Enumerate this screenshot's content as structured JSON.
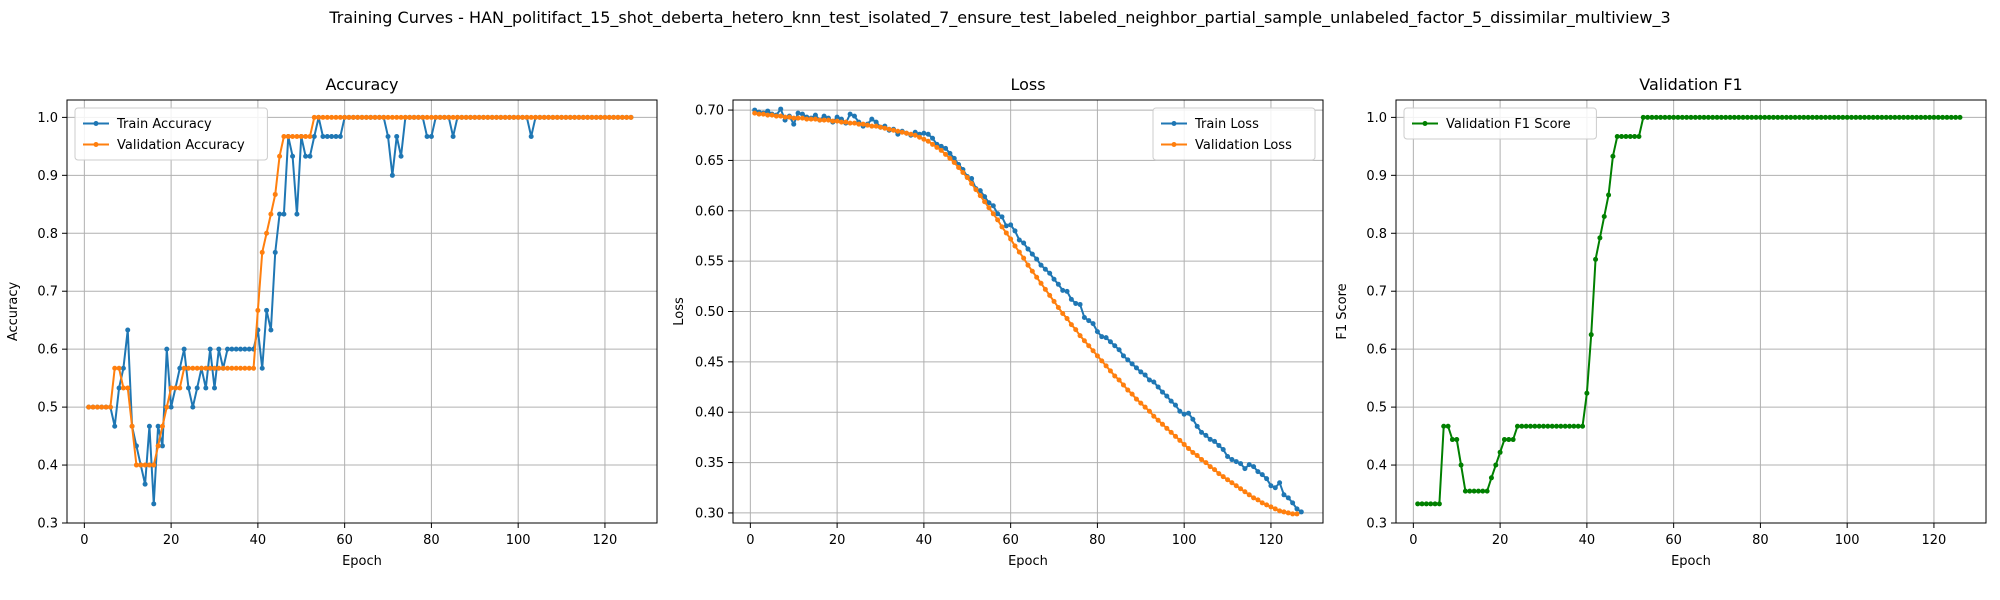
{
  "figure": {
    "suptitle": "Training Curves - HAN_politifact_15_shot_deberta_hetero_knn_test_isolated_7_ensure_test_labeled_neighbor_partial_sample_unlabeled_factor_5_dissimilar_multiview_3"
  },
  "colors": {
    "train": "#1f77b4",
    "validation": "#ff7f0e",
    "f1": "#008000",
    "grid": "#b0b0b0"
  },
  "chart_data": [
    {
      "type": "line",
      "title": "Accuracy",
      "xlabel": "Epoch",
      "ylabel": "Accuracy",
      "xlim": [
        -4,
        132
      ],
      "ylim": [
        0.3,
        1.03
      ],
      "xticks": [
        0,
        20,
        40,
        60,
        80,
        100,
        120
      ],
      "yticks": [
        0.3,
        0.4,
        0.5,
        0.6,
        0.7,
        0.8,
        0.9,
        1.0
      ],
      "grid": true,
      "legend_position": "upper-left",
      "x_start": 1,
      "series": [
        {
          "name": "Train Accuracy",
          "color": "#1f77b4",
          "values": [
            0.5,
            0.5,
            0.5,
            0.5,
            0.5,
            0.5,
            0.467,
            0.533,
            0.567,
            0.633,
            0.467,
            0.433,
            0.4,
            0.367,
            0.467,
            0.333,
            0.467,
            0.433,
            0.6,
            0.5,
            0.533,
            0.567,
            0.6,
            0.533,
            0.5,
            0.533,
            0.567,
            0.533,
            0.6,
            0.533,
            0.6,
            0.567,
            0.6,
            0.6,
            0.6,
            0.6,
            0.6,
            0.6,
            0.6,
            0.633,
            0.567,
            0.667,
            0.633,
            0.767,
            0.833,
            0.833,
            0.967,
            0.933,
            0.833,
            0.967,
            0.933,
            0.933,
            0.967,
            1.0,
            0.967,
            0.967,
            0.967,
            0.967,
            0.967,
            1.0,
            1.0,
            1.0,
            1.0,
            1.0,
            1.0,
            1.0,
            1.0,
            1.0,
            1.0,
            0.967,
            0.9,
            0.967,
            0.933,
            1.0,
            1.0,
            1.0,
            1.0,
            1.0,
            0.967,
            0.967,
            1.0,
            1.0,
            1.0,
            1.0,
            0.967,
            1.0,
            1.0,
            1.0,
            1.0,
            1.0,
            1.0,
            1.0,
            1.0,
            1.0,
            1.0,
            1.0,
            1.0,
            1.0,
            1.0,
            1.0,
            1.0,
            1.0,
            0.967,
            1.0,
            1.0,
            1.0,
            1.0,
            1.0,
            1.0,
            1.0,
            1.0,
            1.0,
            1.0,
            1.0,
            1.0,
            1.0,
            1.0,
            1.0,
            1.0,
            1.0,
            1.0,
            1.0,
            1.0,
            1.0,
            1.0,
            1.0
          ]
        },
        {
          "name": "Validation Accuracy",
          "color": "#ff7f0e",
          "values": [
            0.5,
            0.5,
            0.5,
            0.5,
            0.5,
            0.5,
            0.567,
            0.567,
            0.533,
            0.533,
            0.467,
            0.4,
            0.4,
            0.4,
            0.4,
            0.4,
            0.433,
            0.467,
            0.5,
            0.533,
            0.533,
            0.533,
            0.567,
            0.567,
            0.567,
            0.567,
            0.567,
            0.567,
            0.567,
            0.567,
            0.567,
            0.567,
            0.567,
            0.567,
            0.567,
            0.567,
            0.567,
            0.567,
            0.567,
            0.667,
            0.767,
            0.8,
            0.833,
            0.867,
            0.933,
            0.967,
            0.967,
            0.967,
            0.967,
            0.967,
            0.967,
            0.967,
            1.0,
            1.0,
            1.0,
            1.0,
            1.0,
            1.0,
            1.0,
            1.0,
            1.0,
            1.0,
            1.0,
            1.0,
            1.0,
            1.0,
            1.0,
            1.0,
            1.0,
            1.0,
            1.0,
            1.0,
            1.0,
            1.0,
            1.0,
            1.0,
            1.0,
            1.0,
            1.0,
            1.0,
            1.0,
            1.0,
            1.0,
            1.0,
            1.0,
            1.0,
            1.0,
            1.0,
            1.0,
            1.0,
            1.0,
            1.0,
            1.0,
            1.0,
            1.0,
            1.0,
            1.0,
            1.0,
            1.0,
            1.0,
            1.0,
            1.0,
            1.0,
            1.0,
            1.0,
            1.0,
            1.0,
            1.0,
            1.0,
            1.0,
            1.0,
            1.0,
            1.0,
            1.0,
            1.0,
            1.0,
            1.0,
            1.0,
            1.0,
            1.0,
            1.0,
            1.0,
            1.0,
            1.0,
            1.0,
            1.0
          ]
        }
      ]
    },
    {
      "type": "line",
      "title": "Loss",
      "xlabel": "Epoch",
      "ylabel": "Loss",
      "xlim": [
        -4,
        132
      ],
      "ylim": [
        0.29,
        0.71
      ],
      "xticks": [
        0,
        20,
        40,
        60,
        80,
        100,
        120
      ],
      "yticks": [
        0.3,
        0.35,
        0.4,
        0.45,
        0.5,
        0.55,
        0.6,
        0.65,
        0.7
      ],
      "grid": true,
      "legend_position": "upper-right",
      "x_start": 1,
      "series": [
        {
          "name": "Train Loss",
          "color": "#1f77b4",
          "values": [
            0.7,
            0.698,
            0.697,
            0.699,
            0.696,
            0.695,
            0.701,
            0.69,
            0.694,
            0.686,
            0.697,
            0.696,
            0.693,
            0.692,
            0.695,
            0.69,
            0.694,
            0.692,
            0.688,
            0.693,
            0.691,
            0.687,
            0.696,
            0.694,
            0.688,
            0.684,
            0.686,
            0.691,
            0.688,
            0.683,
            0.684,
            0.68,
            0.681,
            0.676,
            0.679,
            0.677,
            0.675,
            0.678,
            0.676,
            0.677,
            0.676,
            0.672,
            0.666,
            0.664,
            0.662,
            0.657,
            0.652,
            0.646,
            0.641,
            0.634,
            0.632,
            0.622,
            0.62,
            0.614,
            0.608,
            0.605,
            0.597,
            0.594,
            0.585,
            0.586,
            0.58,
            0.571,
            0.568,
            0.562,
            0.557,
            0.552,
            0.546,
            0.542,
            0.538,
            0.532,
            0.527,
            0.521,
            0.52,
            0.512,
            0.508,
            0.507,
            0.494,
            0.491,
            0.488,
            0.48,
            0.475,
            0.474,
            0.47,
            0.466,
            0.462,
            0.456,
            0.452,
            0.448,
            0.444,
            0.44,
            0.437,
            0.432,
            0.43,
            0.425,
            0.42,
            0.416,
            0.411,
            0.407,
            0.401,
            0.398,
            0.399,
            0.393,
            0.386,
            0.38,
            0.377,
            0.373,
            0.371,
            0.367,
            0.363,
            0.356,
            0.353,
            0.351,
            0.349,
            0.344,
            0.348,
            0.346,
            0.341,
            0.338,
            0.334,
            0.327,
            0.325,
            0.33,
            0.318,
            0.315,
            0.31,
            0.304,
            0.301
          ]
        },
        {
          "name": "Validation Loss",
          "color": "#ff7f0e",
          "values": [
            0.697,
            0.696,
            0.696,
            0.695,
            0.695,
            0.694,
            0.694,
            0.693,
            0.693,
            0.692,
            0.692,
            0.692,
            0.691,
            0.691,
            0.691,
            0.69,
            0.69,
            0.69,
            0.689,
            0.689,
            0.688,
            0.688,
            0.687,
            0.687,
            0.686,
            0.686,
            0.685,
            0.684,
            0.684,
            0.683,
            0.682,
            0.681,
            0.68,
            0.679,
            0.678,
            0.677,
            0.676,
            0.675,
            0.673,
            0.671,
            0.669,
            0.666,
            0.663,
            0.66,
            0.656,
            0.652,
            0.648,
            0.643,
            0.638,
            0.633,
            0.627,
            0.621,
            0.615,
            0.609,
            0.603,
            0.597,
            0.591,
            0.584,
            0.578,
            0.572,
            0.565,
            0.559,
            0.553,
            0.546,
            0.54,
            0.534,
            0.528,
            0.522,
            0.516,
            0.51,
            0.504,
            0.498,
            0.493,
            0.487,
            0.482,
            0.476,
            0.471,
            0.466,
            0.461,
            0.456,
            0.451,
            0.446,
            0.441,
            0.436,
            0.432,
            0.427,
            0.422,
            0.418,
            0.413,
            0.409,
            0.405,
            0.401,
            0.396,
            0.392,
            0.388,
            0.384,
            0.38,
            0.376,
            0.372,
            0.368,
            0.364,
            0.36,
            0.357,
            0.353,
            0.35,
            0.346,
            0.343,
            0.339,
            0.336,
            0.333,
            0.33,
            0.327,
            0.324,
            0.321,
            0.318,
            0.315,
            0.313,
            0.31,
            0.308,
            0.306,
            0.304,
            0.302,
            0.301,
            0.3,
            0.299,
            0.299
          ]
        }
      ]
    },
    {
      "type": "line",
      "title": "Validation F1",
      "xlabel": "Epoch",
      "ylabel": "F1 Score",
      "xlim": [
        -4,
        132
      ],
      "ylim": [
        0.3,
        1.03
      ],
      "xticks": [
        0,
        20,
        40,
        60,
        80,
        100,
        120
      ],
      "yticks": [
        0.3,
        0.4,
        0.5,
        0.6,
        0.7,
        0.8,
        0.9,
        1.0
      ],
      "grid": true,
      "legend_position": "upper-left",
      "x_start": 1,
      "series": [
        {
          "name": "Validation F1 Score",
          "color": "#008000",
          "values": [
            0.333,
            0.333,
            0.333,
            0.333,
            0.333,
            0.333,
            0.467,
            0.467,
            0.444,
            0.444,
            0.4,
            0.355,
            0.355,
            0.355,
            0.355,
            0.355,
            0.355,
            0.378,
            0.4,
            0.422,
            0.444,
            0.444,
            0.444,
            0.467,
            0.467,
            0.467,
            0.467,
            0.467,
            0.467,
            0.467,
            0.467,
            0.467,
            0.467,
            0.467,
            0.467,
            0.467,
            0.467,
            0.467,
            0.467,
            0.524,
            0.625,
            0.755,
            0.792,
            0.829,
            0.866,
            0.933,
            0.967,
            0.967,
            0.967,
            0.967,
            0.967,
            0.967,
            1.0,
            1.0,
            1.0,
            1.0,
            1.0,
            1.0,
            1.0,
            1.0,
            1.0,
            1.0,
            1.0,
            1.0,
            1.0,
            1.0,
            1.0,
            1.0,
            1.0,
            1.0,
            1.0,
            1.0,
            1.0,
            1.0,
            1.0,
            1.0,
            1.0,
            1.0,
            1.0,
            1.0,
            1.0,
            1.0,
            1.0,
            1.0,
            1.0,
            1.0,
            1.0,
            1.0,
            1.0,
            1.0,
            1.0,
            1.0,
            1.0,
            1.0,
            1.0,
            1.0,
            1.0,
            1.0,
            1.0,
            1.0,
            1.0,
            1.0,
            1.0,
            1.0,
            1.0,
            1.0,
            1.0,
            1.0,
            1.0,
            1.0,
            1.0,
            1.0,
            1.0,
            1.0,
            1.0,
            1.0,
            1.0,
            1.0,
            1.0,
            1.0,
            1.0,
            1.0,
            1.0,
            1.0,
            1.0,
            1.0
          ]
        }
      ]
    }
  ]
}
